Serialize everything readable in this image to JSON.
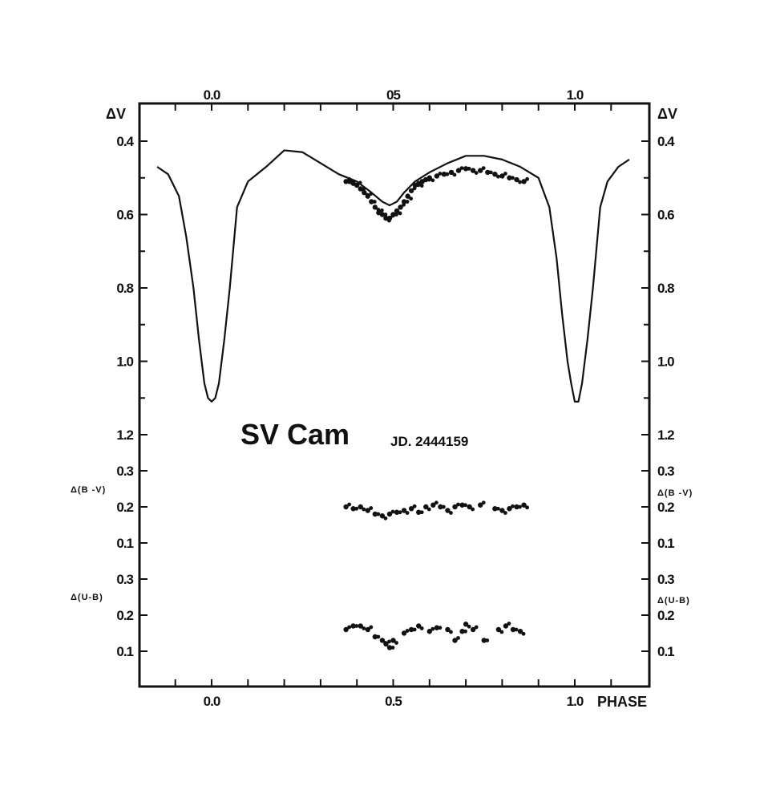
{
  "chart_data": {
    "type": "scatter",
    "title": "SV Cam",
    "subtitle": "JD. 2444159",
    "x_axis": {
      "label": "PHASE",
      "range": [
        -0.2,
        1.2
      ],
      "tick_labels": [
        "0.0",
        "0.5",
        "1.0"
      ],
      "top_tick_labels": [
        "0.0",
        "05",
        "1.0"
      ]
    },
    "panels": [
      {
        "name": "V",
        "y_label": "ΔV",
        "y_range": [
          1.25,
          0.32
        ],
        "y_ticks": [
          {
            "value": 0.4,
            "label": "0.4"
          },
          {
            "value": 0.6,
            "label": "0.6"
          },
          {
            "value": 0.8,
            "label": "0.8"
          },
          {
            "value": 1.0,
            "label": "1.0"
          },
          {
            "value": 1.2,
            "label": "1.2"
          }
        ],
        "y_ticks_right": [
          {
            "value": 0.4,
            "label": "0.4"
          },
          {
            "value": 0.6,
            "label": "0.6"
          },
          {
            "value": 0.8,
            "label": "0.8"
          },
          {
            "value": 1.0,
            "label": "1.0"
          },
          {
            "value": 1.2,
            "label": "1.2"
          }
        ],
        "model_curve": {
          "x": [
            -0.15,
            -0.12,
            -0.09,
            -0.07,
            -0.05,
            -0.035,
            -0.02,
            -0.01,
            0.0,
            0.01,
            0.02,
            0.035,
            0.05,
            0.07,
            0.1,
            0.15,
            0.2,
            0.25,
            0.3,
            0.35,
            0.4,
            0.44,
            0.47,
            0.49,
            0.51,
            0.53,
            0.56,
            0.6,
            0.65,
            0.7,
            0.75,
            0.8,
            0.85,
            0.9,
            0.93,
            0.95,
            0.965,
            0.98,
            0.99,
            1.0,
            1.01,
            1.02,
            1.035,
            1.05,
            1.07,
            1.09,
            1.12,
            1.15
          ],
          "y": [
            0.47,
            0.49,
            0.55,
            0.66,
            0.8,
            0.94,
            1.06,
            1.1,
            1.11,
            1.1,
            1.06,
            0.94,
            0.8,
            0.58,
            0.51,
            0.47,
            0.425,
            0.43,
            0.46,
            0.49,
            0.51,
            0.54,
            0.565,
            0.575,
            0.565,
            0.54,
            0.51,
            0.485,
            0.46,
            0.44,
            0.44,
            0.45,
            0.47,
            0.5,
            0.58,
            0.72,
            0.87,
            1.0,
            1.06,
            1.11,
            1.11,
            1.06,
            0.94,
            0.8,
            0.58,
            0.51,
            0.47,
            0.45
          ]
        },
        "observations": {
          "x": [
            0.37,
            0.38,
            0.39,
            0.4,
            0.41,
            0.42,
            0.43,
            0.44,
            0.45,
            0.46,
            0.47,
            0.48,
            0.49,
            0.5,
            0.51,
            0.52,
            0.53,
            0.54,
            0.55,
            0.56,
            0.57,
            0.58,
            0.59,
            0.6,
            0.62,
            0.64,
            0.66,
            0.68,
            0.7,
            0.72,
            0.74,
            0.76,
            0.78,
            0.8,
            0.82,
            0.84,
            0.86
          ],
          "y": [
            0.51,
            0.51,
            0.515,
            0.52,
            0.53,
            0.54,
            0.55,
            0.565,
            0.58,
            0.595,
            0.6,
            0.61,
            0.61,
            0.6,
            0.59,
            0.58,
            0.565,
            0.55,
            0.535,
            0.52,
            0.515,
            0.51,
            0.505,
            0.5,
            0.495,
            0.49,
            0.485,
            0.48,
            0.475,
            0.48,
            0.48,
            0.485,
            0.49,
            0.495,
            0.5,
            0.505,
            0.51
          ]
        }
      },
      {
        "name": "B-V",
        "y_label": "Δ(B -V)",
        "y_range": [
          0.05,
          0.34
        ],
        "y_ticks": [
          {
            "value": 0.3,
            "label": "0.3"
          },
          {
            "value": 0.2,
            "label": "0.2"
          },
          {
            "value": 0.1,
            "label": "0.1"
          }
        ],
        "y_ticks_right": [
          {
            "value": 0.3,
            "label": "0.3"
          },
          {
            "value": 0.2,
            "label": "0.2"
          },
          {
            "value": 0.1,
            "label": "0.1"
          }
        ],
        "observations": {
          "x": [
            0.37,
            0.39,
            0.41,
            0.43,
            0.45,
            0.47,
            0.49,
            0.51,
            0.53,
            0.55,
            0.57,
            0.59,
            0.61,
            0.63,
            0.65,
            0.67,
            0.69,
            0.71,
            0.74,
            0.78,
            0.8,
            0.82,
            0.84,
            0.86
          ],
          "y": [
            0.2,
            0.195,
            0.2,
            0.19,
            0.18,
            0.175,
            0.18,
            0.185,
            0.19,
            0.195,
            0.185,
            0.2,
            0.205,
            0.2,
            0.19,
            0.2,
            0.205,
            0.2,
            0.205,
            0.195,
            0.19,
            0.195,
            0.2,
            0.205
          ]
        }
      },
      {
        "name": "U-B",
        "y_label": "Δ(U-B)",
        "y_range": [
          0.03,
          0.34
        ],
        "y_ticks": [
          {
            "value": 0.3,
            "label": "0.3"
          },
          {
            "value": 0.2,
            "label": "0.2"
          },
          {
            "value": 0.1,
            "label": "0.1"
          }
        ],
        "y_ticks_right": [
          {
            "value": 0.3,
            "label": "0.3"
          },
          {
            "value": 0.2,
            "label": "0.2"
          },
          {
            "value": 0.1,
            "label": "0.1"
          }
        ],
        "observations": {
          "x": [
            0.37,
            0.39,
            0.41,
            0.43,
            0.45,
            0.47,
            0.48,
            0.49,
            0.5,
            0.53,
            0.55,
            0.57,
            0.6,
            0.62,
            0.65,
            0.67,
            0.69,
            0.7,
            0.72,
            0.75,
            0.79,
            0.81,
            0.83,
            0.85
          ],
          "y": [
            0.16,
            0.17,
            0.17,
            0.16,
            0.14,
            0.13,
            0.12,
            0.11,
            0.13,
            0.15,
            0.16,
            0.17,
            0.155,
            0.165,
            0.16,
            0.13,
            0.155,
            0.175,
            0.16,
            0.13,
            0.16,
            0.17,
            0.16,
            0.155
          ]
        }
      }
    ]
  }
}
